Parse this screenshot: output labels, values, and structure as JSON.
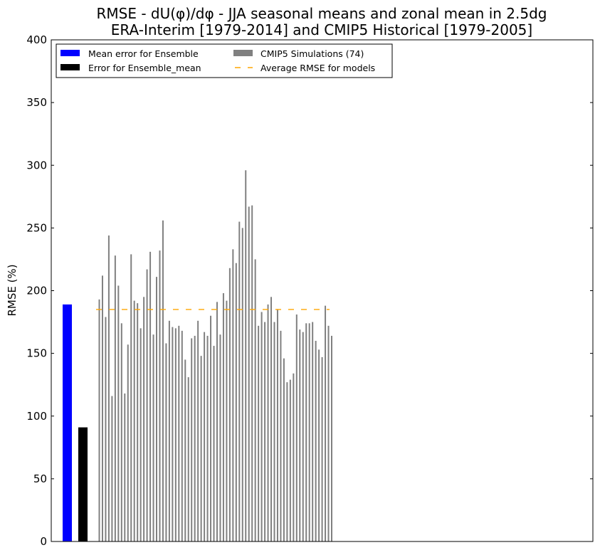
{
  "chart_data": {
    "type": "bar",
    "title": [
      "RMSE - dU(φ)/dφ - JJA seasonal means and zonal mean in 2.5dg",
      "ERA-Interim [1979-2014] and CMIP5 Historical [1979-2005]"
    ],
    "xlabel": "",
    "ylabel": "RMSE (%)",
    "ylim": [
      0,
      400
    ],
    "yticks": [
      "0",
      "50",
      "100",
      "150",
      "200",
      "250",
      "300",
      "350",
      "400"
    ],
    "grid": false,
    "legend_position": "top-left",
    "series": [
      {
        "name": "Mean error for Ensemble",
        "color": "#0000ff",
        "values": [
          189
        ]
      },
      {
        "name": "Error for Ensemble_mean",
        "color": "#000000",
        "values": [
          91
        ]
      },
      {
        "name": "CMIP5 Simulations (74)",
        "color": "#808080",
        "values": [
          193,
          212,
          179,
          244,
          116,
          228,
          204,
          174,
          118,
          157,
          229,
          192,
          190,
          170,
          195,
          217,
          231,
          165,
          211,
          232,
          256,
          158,
          176,
          171,
          170,
          172,
          168,
          145,
          131,
          162,
          164,
          176,
          148,
          167,
          164,
          180,
          156,
          191,
          165,
          198,
          192,
          218,
          233,
          222,
          255,
          250,
          296,
          267,
          268,
          225,
          172,
          183,
          175,
          189,
          195,
          175,
          185,
          168,
          146,
          127,
          129,
          134,
          181,
          169,
          167,
          174,
          174,
          175,
          160,
          153,
          147,
          188,
          172,
          164
        ]
      },
      {
        "name": "Average RMSE for models",
        "color": "#ffa500",
        "style": "dashed",
        "value": 185
      }
    ]
  }
}
